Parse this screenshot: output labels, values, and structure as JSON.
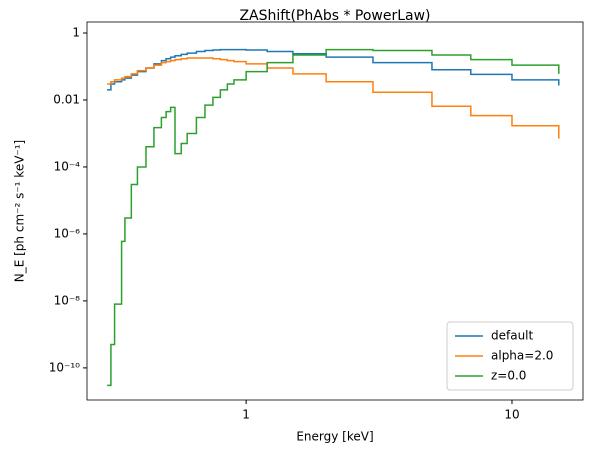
{
  "chart_data": {
    "type": "line",
    "step": "post",
    "title": "ZAShift(PhAbs * PowerLaw)",
    "xlabel": "Energy [keV]",
    "ylabel": "N_E [ph cm⁻² s⁻¹ keV⁻¹]",
    "xlog": true,
    "ylog": true,
    "legend": "lower right",
    "x": [
      0.3,
      0.31,
      0.32,
      0.34,
      0.35,
      0.37,
      0.39,
      0.42,
      0.45,
      0.48,
      0.5,
      0.52,
      0.54,
      0.57,
      0.6,
      0.65,
      0.7,
      0.75,
      0.8,
      0.85,
      0.9,
      1,
      1.2,
      1.5,
      2,
      3,
      5,
      7,
      10,
      15
    ],
    "series": [
      {
        "name": "default",
        "color": "#1f77b4",
        "values": [
          0.02,
          0.03,
          0.035,
          0.04,
          0.045,
          0.055,
          0.07,
          0.09,
          0.12,
          0.15,
          0.17,
          0.19,
          0.21,
          0.23,
          0.25,
          0.28,
          0.3,
          0.31,
          0.32,
          0.32,
          0.32,
          0.31,
          0.28,
          0.24,
          0.19,
          0.13,
          0.08,
          0.058,
          0.04,
          0.027
        ]
      },
      {
        "name": "alpha=2.0",
        "color": "#ff7f0e",
        "values": [
          0.03,
          0.035,
          0.04,
          0.045,
          0.05,
          0.06,
          0.075,
          0.09,
          0.11,
          0.13,
          0.14,
          0.15,
          0.16,
          0.17,
          0.18,
          0.18,
          0.18,
          0.17,
          0.16,
          0.15,
          0.14,
          0.12,
          0.09,
          0.06,
          0.035,
          0.017,
          0.0065,
          0.0034,
          0.0017,
          0.0007
        ]
      },
      {
        "name": "z=0.0",
        "color": "#2ca02c",
        "values": [
          3e-11,
          5e-10,
          8e-09,
          6e-07,
          3e-06,
          3e-05,
          0.0001,
          0.0004,
          0.0015,
          0.003,
          0.0045,
          0.006,
          0.00025,
          0.0005,
          0.001,
          0.003,
          0.007,
          0.012,
          0.02,
          0.03,
          0.04,
          0.07,
          0.13,
          0.22,
          0.32,
          0.3,
          0.22,
          0.16,
          0.11,
          0.06
        ]
      }
    ],
    "xlim": [
      0.252,
      18.5
    ],
    "xticks": [
      1,
      10
    ],
    "ylim": [
      1.1e-11,
      2.13
    ],
    "yticks": [
      1,
      0.01,
      {
        "value": 0.0001,
        "label": "10⁻⁴"
      },
      {
        "value": 1e-06,
        "label": "10⁻⁶"
      },
      {
        "value": 1e-08,
        "label": "10⁻⁸"
      },
      {
        "value": 1e-10,
        "label": "10⁻¹⁰"
      }
    ]
  }
}
